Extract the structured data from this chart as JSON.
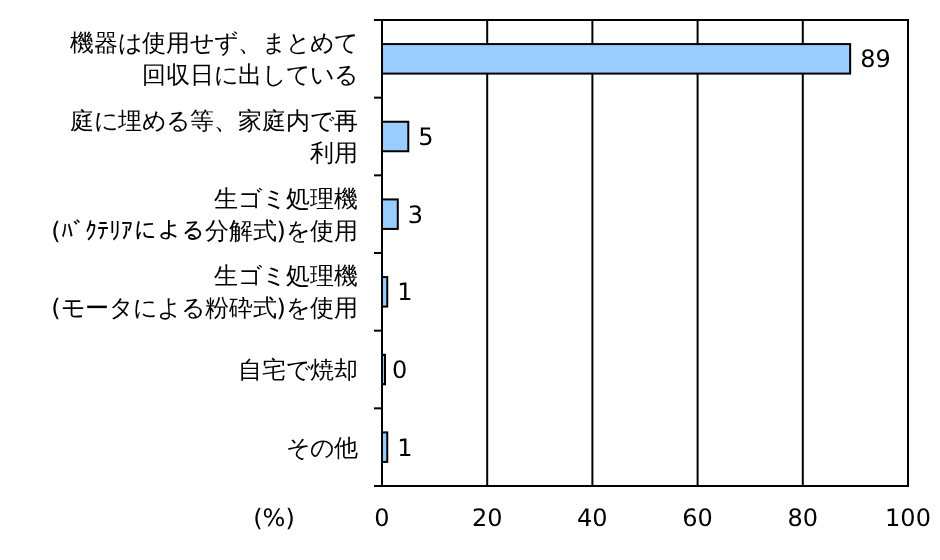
{
  "chart_data": {
    "type": "bar",
    "orientation": "horizontal",
    "xlabel": "(%)",
    "categories": [
      "機器は使用せず、まとめて回収日に出している",
      "庭に埋める等、家庭内で再利用",
      "生ゴミ処理機(ﾊﾞｸﾃﾘｱによる分解式)を使用",
      "生ゴミ処理機(モータによる粉砕式)を使用",
      "自宅で焼却",
      "その他"
    ],
    "values": [
      89,
      5,
      3,
      1,
      0,
      1
    ],
    "color": "#99ccff",
    "xlim": [
      0,
      100
    ],
    "xticks": [
      0,
      20,
      40,
      60,
      80,
      100
    ],
    "grid": "x",
    "data_labels": true
  }
}
